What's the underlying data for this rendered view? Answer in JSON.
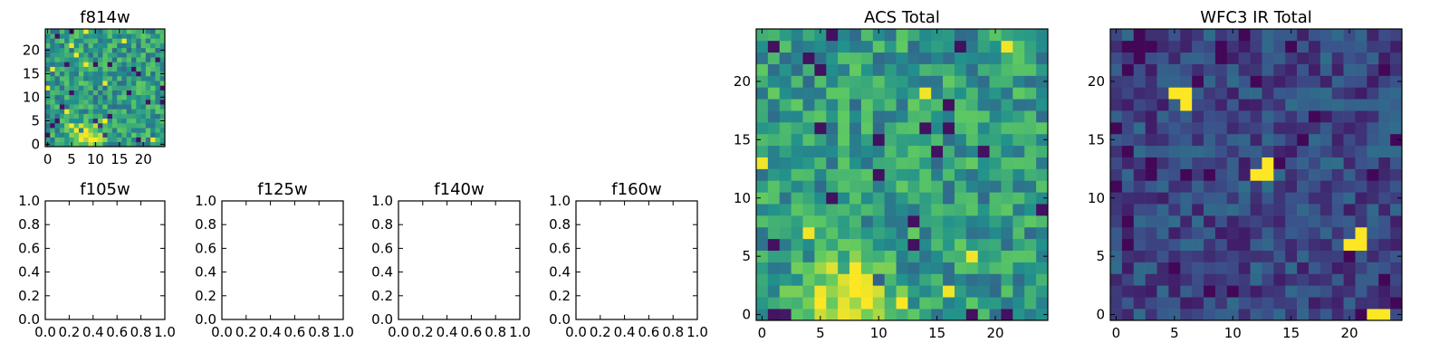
{
  "colormap": [
    "#440154",
    "#3b528b",
    "#21918c",
    "#5ec962",
    "#fde725"
  ],
  "chart_data": [
    {
      "id": "f814w",
      "type": "heatmap",
      "title": "f814w",
      "xlim": [
        -0.5,
        24.5
      ],
      "ylim": [
        -0.5,
        24.5
      ],
      "xticks": [
        0,
        5,
        10,
        15,
        20
      ],
      "xtick_labels": [
        "0",
        "5",
        "10",
        "15",
        "20"
      ],
      "yticks": [
        0,
        5,
        10,
        15,
        20
      ],
      "ytick_labels": [
        "0",
        "5",
        "10",
        "15",
        "20"
      ],
      "grid_size": [
        25,
        25
      ],
      "pattern": "noise with bright blob centered near (8, 2)",
      "grid": false
    },
    {
      "id": "f105w",
      "type": "empty",
      "title": "f105w",
      "xlim": [
        0,
        1
      ],
      "ylim": [
        0,
        1
      ],
      "xticks": [
        0,
        0.2,
        0.4,
        0.6,
        0.8,
        1.0
      ],
      "xtick_labels": [
        "0.0",
        "0.2",
        "0.4",
        "0.6",
        "0.8",
        "1.0"
      ],
      "yticks": [
        0,
        0.2,
        0.4,
        0.6,
        0.8,
        1.0
      ],
      "ytick_labels": [
        "0.0",
        "0.2",
        "0.4",
        "0.6",
        "0.8",
        "1.0"
      ]
    },
    {
      "id": "f125w",
      "type": "empty",
      "title": "f125w",
      "xlim": [
        0,
        1
      ],
      "ylim": [
        0,
        1
      ],
      "xticks": [
        0,
        0.2,
        0.4,
        0.6,
        0.8,
        1.0
      ],
      "xtick_labels": [
        "0.0",
        "0.2",
        "0.4",
        "0.6",
        "0.8",
        "1.0"
      ],
      "yticks": [
        0,
        0.2,
        0.4,
        0.6,
        0.8,
        1.0
      ],
      "ytick_labels": [
        "0.0",
        "0.2",
        "0.4",
        "0.6",
        "0.8",
        "1.0"
      ]
    },
    {
      "id": "f140w",
      "type": "empty",
      "title": "f140w",
      "xlim": [
        0,
        1
      ],
      "ylim": [
        0,
        1
      ],
      "xticks": [
        0,
        0.2,
        0.4,
        0.6,
        0.8,
        1.0
      ],
      "xtick_labels": [
        "0.0",
        "0.2",
        "0.4",
        "0.6",
        "0.8",
        "1.0"
      ],
      "yticks": [
        0,
        0.2,
        0.4,
        0.6,
        0.8,
        1.0
      ],
      "ytick_labels": [
        "0.0",
        "0.2",
        "0.4",
        "0.6",
        "0.8",
        "1.0"
      ]
    },
    {
      "id": "f160w",
      "type": "empty",
      "title": "f160w",
      "xlim": [
        0,
        1
      ],
      "ylim": [
        0,
        1
      ],
      "xticks": [
        0,
        0.2,
        0.4,
        0.6,
        0.8,
        1.0
      ],
      "xtick_labels": [
        "0.0",
        "0.2",
        "0.4",
        "0.6",
        "0.8",
        "1.0"
      ],
      "yticks": [
        0,
        0.2,
        0.4,
        0.6,
        0.8,
        1.0
      ],
      "ytick_labels": [
        "0.0",
        "0.2",
        "0.4",
        "0.6",
        "0.8",
        "1.0"
      ]
    },
    {
      "id": "acs-total",
      "type": "heatmap",
      "title": "ACS Total",
      "xlim": [
        -0.5,
        24.5
      ],
      "ylim": [
        -0.5,
        24.5
      ],
      "xticks": [
        0,
        5,
        10,
        15,
        20
      ],
      "xtick_labels": [
        "0",
        "5",
        "10",
        "15",
        "20"
      ],
      "yticks": [
        0,
        5,
        10,
        15,
        20
      ],
      "ytick_labels": [
        "0",
        "5",
        "10",
        "15",
        "20"
      ],
      "grid_size": [
        25,
        25
      ],
      "pattern": "noise with bright blob near (7, 2); sparse dark pixels",
      "grid": false
    },
    {
      "id": "wfc3-ir-total",
      "type": "heatmap",
      "title": "WFC3 IR Total",
      "xlim": [
        -0.5,
        24.5
      ],
      "ylim": [
        -0.5,
        24.5
      ],
      "xticks": [
        0,
        5,
        10,
        15,
        20
      ],
      "xtick_labels": [
        "0",
        "5",
        "10",
        "15",
        "20"
      ],
      "yticks": [
        0,
        5,
        10,
        15,
        20
      ],
      "ytick_labels": [
        "0",
        "5",
        "10",
        "15",
        "20"
      ],
      "grid_size": [
        25,
        25
      ],
      "pattern": "dark noise with a few bright pixel clusters",
      "bright_pixels": [
        [
          5,
          19
        ],
        [
          6,
          19
        ],
        [
          6,
          18
        ],
        [
          12,
          12
        ],
        [
          13,
          12
        ],
        [
          13,
          13
        ],
        [
          20,
          6
        ],
        [
          21,
          6
        ],
        [
          21,
          7
        ],
        [
          22,
          0
        ],
        [
          23,
          0
        ]
      ],
      "grid": false
    }
  ]
}
